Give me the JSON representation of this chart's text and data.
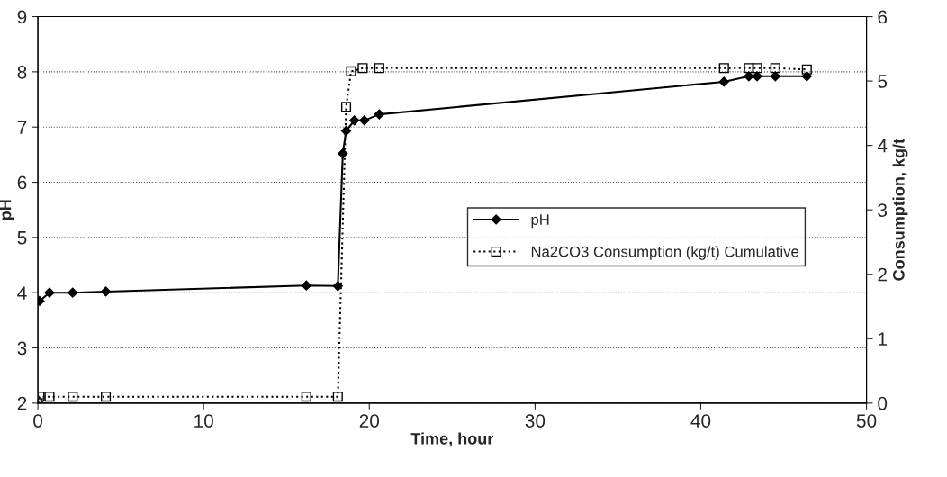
{
  "chart_data": {
    "type": "line",
    "xlabel": "Time, hour",
    "ylabel": "pH",
    "y2label": "Consumption, kg/t",
    "xlim": [
      0,
      50
    ],
    "xticks": [
      0,
      10,
      20,
      30,
      40,
      50
    ],
    "ylim": [
      2,
      9
    ],
    "yticks": [
      2,
      3,
      4,
      5,
      6,
      7,
      8,
      9
    ],
    "y2lim": [
      0,
      6
    ],
    "y2ticks": [
      0,
      1,
      2,
      3,
      4,
      5,
      6
    ],
    "grid": "y",
    "legend": "right",
    "series": [
      {
        "name": "pH",
        "color": "#000000",
        "marker": "diamond",
        "line_style": "solid",
        "x": [
          0.1,
          0.7,
          2.1,
          4.1,
          16.2,
          18.1,
          18.4,
          18.6,
          19.1,
          19.7,
          20.6,
          41.4,
          42.9,
          43.4,
          44.5,
          46.4
        ],
        "values": [
          3.85,
          4.0,
          4.0,
          4.02,
          4.13,
          4.12,
          6.52,
          6.93,
          7.12,
          7.12,
          7.23,
          7.82,
          7.92,
          7.92,
          7.92,
          7.92
        ]
      },
      {
        "name": "Na2CO3 Consumption (kg/t) Cumulative",
        "color": "#000000",
        "marker": "square",
        "line_style": "dotted",
        "axis": "y2",
        "x": [
          0.0,
          0.1,
          0.7,
          2.1,
          4.1,
          16.2,
          18.1,
          18.6,
          18.9,
          19.6,
          20.6,
          41.4,
          42.9,
          43.4,
          44.5,
          46.4
        ],
        "values": [
          0.0,
          0.1,
          0.1,
          0.1,
          0.1,
          0.1,
          0.1,
          4.6,
          5.15,
          5.2,
          5.2,
          5.2,
          5.2,
          5.2,
          5.2,
          5.18
        ]
      }
    ]
  }
}
